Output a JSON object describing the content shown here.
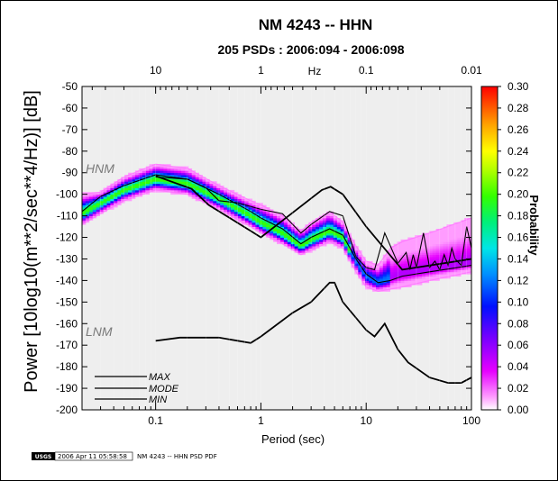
{
  "chart_data": {
    "type": "heatmap",
    "title": "NM 4243 -- HHN",
    "subtitle": "205 PSDs : 2006:094 - 2006:098",
    "xlabel": "Period (sec)",
    "ylabel": "Power [10log10(m**2/sec**4/Hz)] [dB]",
    "top_axis_label": "Hz",
    "colorbar_label": "Probability",
    "x_scale": "log",
    "xlim": [
      0.02,
      100
    ],
    "ylim": [
      -200,
      -50
    ],
    "x_ticks": [
      0.1,
      1,
      10,
      100
    ],
    "x_tick_labels": [
      "0.1",
      "1",
      "10",
      "100"
    ],
    "top_ticks": [
      10,
      1,
      0.1,
      0.01
    ],
    "top_tick_labels": [
      "10",
      "1",
      "0.1",
      "0.01"
    ],
    "y_ticks": [
      -50,
      -60,
      -70,
      -80,
      -90,
      -100,
      -110,
      -120,
      -130,
      -140,
      -150,
      -160,
      -170,
      -180,
      -190,
      -200
    ],
    "colorbar_ticks": [
      0.3,
      0.28,
      0.26,
      0.24,
      0.22,
      0.2,
      0.18,
      0.16,
      0.14,
      0.12,
      0.1,
      0.08,
      0.06,
      0.04,
      0.02,
      0.0
    ],
    "colorbar_tick_labels": [
      "0.30",
      "0.28",
      "0.26",
      "0.24",
      "0.22",
      "0.20",
      "0.18",
      "0.16",
      "0.14",
      "0.12",
      "0.10",
      "0.08",
      "0.06",
      "0.04",
      "0.02",
      "0.00"
    ],
    "colorbar_range": [
      0,
      0.3
    ],
    "reference_models": [
      {
        "name": "HNM",
        "points": [
          [
            0.1,
            -91.5
          ],
          [
            0.22,
            -97.5
          ],
          [
            0.32,
            -105
          ],
          [
            0.8,
            -117
          ],
          [
            1.0,
            -120
          ],
          [
            3.8,
            -98
          ],
          [
            4.6,
            -96.5
          ],
          [
            6.0,
            -100
          ],
          [
            10.0,
            -115
          ],
          [
            22.0,
            -135
          ],
          [
            100.0,
            -130
          ]
        ]
      },
      {
        "name": "LNM",
        "points": [
          [
            0.1,
            -168
          ],
          [
            0.17,
            -166.5
          ],
          [
            0.4,
            -166.5
          ],
          [
            0.8,
            -169
          ],
          [
            1.0,
            -166
          ],
          [
            2.0,
            -155
          ],
          [
            3.0,
            -150
          ],
          [
            4.5,
            -141
          ],
          [
            5.0,
            -141
          ],
          [
            6.0,
            -150
          ],
          [
            10.0,
            -163
          ],
          [
            12.0,
            -166
          ],
          [
            15.0,
            -160
          ],
          [
            20.0,
            -172
          ],
          [
            25.0,
            -178
          ],
          [
            40.0,
            -185
          ],
          [
            60.0,
            -187.5
          ],
          [
            80.0,
            -187.5
          ],
          [
            100.0,
            -185
          ]
        ]
      }
    ],
    "series": [
      {
        "name": "MAX",
        "points": [
          [
            0.02,
            -100
          ],
          [
            0.03,
            -99
          ],
          [
            0.05,
            -92
          ],
          [
            0.1,
            -86
          ],
          [
            0.2,
            -88
          ],
          [
            0.4,
            -96
          ],
          [
            0.8,
            -103
          ],
          [
            1.0,
            -105
          ],
          [
            1.6,
            -110
          ],
          [
            2.4,
            -117
          ],
          [
            3.0,
            -113
          ],
          [
            4.5,
            -108
          ],
          [
            6.0,
            -113
          ],
          [
            8.0,
            -124
          ],
          [
            10.0,
            -131
          ],
          [
            13.0,
            -133
          ],
          [
            17.0,
            -125
          ],
          [
            22.0,
            -122
          ],
          [
            40.0,
            -118
          ],
          [
            100.0,
            -111
          ]
        ]
      },
      {
        "name": "MODE",
        "points": [
          [
            0.02,
            -109
          ],
          [
            0.03,
            -104
          ],
          [
            0.05,
            -98
          ],
          [
            0.1,
            -93
          ],
          [
            0.2,
            -95
          ],
          [
            0.4,
            -102
          ],
          [
            0.8,
            -110
          ],
          [
            1.0,
            -113
          ],
          [
            1.6,
            -118
          ],
          [
            2.4,
            -124
          ],
          [
            3.0,
            -121
          ],
          [
            4.5,
            -117
          ],
          [
            6.0,
            -120
          ],
          [
            8.0,
            -131
          ],
          [
            10.0,
            -138
          ],
          [
            13.0,
            -141
          ],
          [
            17.0,
            -139
          ],
          [
            22.0,
            -137
          ],
          [
            40.0,
            -135
          ],
          [
            100.0,
            -132
          ]
        ]
      },
      {
        "name": "MIN",
        "points": [
          [
            0.02,
            -114
          ],
          [
            0.03,
            -109
          ],
          [
            0.05,
            -103
          ],
          [
            0.1,
            -98
          ],
          [
            0.2,
            -100
          ],
          [
            0.4,
            -107
          ],
          [
            0.8,
            -115
          ],
          [
            1.0,
            -118
          ],
          [
            1.6,
            -123
          ],
          [
            2.4,
            -128
          ],
          [
            3.0,
            -126
          ],
          [
            4.5,
            -122
          ],
          [
            6.0,
            -125
          ],
          [
            8.0,
            -136
          ],
          [
            10.0,
            -143
          ],
          [
            13.0,
            -145
          ],
          [
            17.0,
            -144
          ],
          [
            22.0,
            -143
          ],
          [
            40.0,
            -140
          ],
          [
            100.0,
            -136
          ]
        ]
      }
    ],
    "mode_line": [
      [
        0.02,
        -108
      ],
      [
        0.03,
        -101
      ],
      [
        0.05,
        -96
      ],
      [
        0.1,
        -91
      ],
      [
        0.2,
        -93
      ],
      [
        0.4,
        -100
      ],
      [
        0.8,
        -108
      ],
      [
        1.0,
        -111
      ],
      [
        1.6,
        -116
      ],
      [
        2.4,
        -123
      ],
      [
        3.0,
        -120
      ],
      [
        4.5,
        -116
      ],
      [
        6.0,
        -119
      ],
      [
        8.0,
        -130
      ],
      [
        10.0,
        -137
      ],
      [
        13.0,
        -141
      ],
      [
        17.0,
        -140
      ],
      [
        22.0,
        -138
      ],
      [
        40.0,
        -136
      ],
      [
        100.0,
        -133
      ]
    ],
    "max_line": [
      [
        0.1,
        -92
      ],
      [
        0.2,
        -93
      ],
      [
        0.3,
        -97
      ],
      [
        0.4,
        -103
      ],
      [
        0.6,
        -104
      ],
      [
        1.0,
        -107
      ],
      [
        1.6,
        -109
      ],
      [
        2.4,
        -118
      ],
      [
        3.0,
        -114
      ],
      [
        4.5,
        -108
      ],
      [
        6.0,
        -110
      ],
      [
        8.0,
        -129
      ],
      [
        10.0,
        -134
      ],
      [
        12.0,
        -135
      ],
      [
        15.0,
        -118
      ],
      [
        20.0,
        -132
      ],
      [
        24.0,
        -127
      ],
      [
        26.0,
        -135
      ],
      [
        28.0,
        -128
      ],
      [
        30.0,
        -134
      ],
      [
        35.0,
        -118
      ],
      [
        40.0,
        -134
      ],
      [
        45.0,
        -131
      ],
      [
        50.0,
        -135
      ],
      [
        55.0,
        -128
      ],
      [
        60.0,
        -133
      ],
      [
        65.0,
        -125
      ],
      [
        70.0,
        -130
      ],
      [
        80.0,
        -133
      ],
      [
        90.0,
        -115
      ],
      [
        100.0,
        -125
      ]
    ],
    "legend": {
      "position": "bottom-left",
      "entries": [
        {
          "label": "MAX",
          "color": "#0000cc"
        },
        {
          "label": "MODE",
          "color": "#000000"
        },
        {
          "label": "MIN",
          "color": "#cc0000"
        }
      ]
    },
    "colors": {
      "background": "#eeeeee",
      "max_label": "#0000cc",
      "min_label": "#cc0000",
      "model_label": "#7a7a7a"
    }
  },
  "footer": {
    "logo": "USGS",
    "timestamp": "2006 Apr 11 05:58:58",
    "caption": "NM 4243 -- HHN PSD PDF"
  }
}
